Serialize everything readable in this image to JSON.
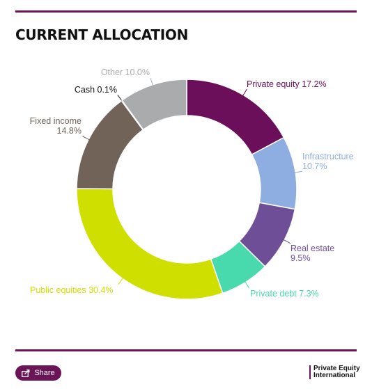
{
  "header": {
    "title": "CURRENT ALLOCATION"
  },
  "footer": {
    "share_label": "Share",
    "brand_line1": "Private Equity",
    "brand_line2": "International"
  },
  "colors": {
    "accent": "#6b1457"
  },
  "chart_data": {
    "type": "pie",
    "variant": "donut",
    "title": "CURRENT ALLOCATION",
    "legend": "none (labels beside slices)",
    "slices": [
      {
        "label": "Private equity",
        "value": 17.2,
        "label_text": "Private equity 17.2%",
        "color": "#6b0f5b"
      },
      {
        "label": "Infrastructure",
        "value": 10.7,
        "label_text": "Infrastructure 10.7%",
        "color": "#8eaee2"
      },
      {
        "label": "Real estate",
        "value": 9.5,
        "label_text": "Real estate 9.5%",
        "color": "#6f4e98"
      },
      {
        "label": "Private debt",
        "value": 7.3,
        "label_text": "Private debt 7.3%",
        "color": "#48d9ad"
      },
      {
        "label": "Public equities",
        "value": 30.4,
        "label_text": "Public equities 30.4%",
        "color": "#cfe000"
      },
      {
        "label": "Fixed income",
        "value": 14.8,
        "label_text": "Fixed income 14.8%",
        "color": "#726359"
      },
      {
        "label": "Cash",
        "value": 0.1,
        "label_text": "Cash 0.1%",
        "color": "#1a1a1a"
      },
      {
        "label": "Other",
        "value": 10.0,
        "label_text": "Other 10.0%",
        "color": "#a9abad"
      }
    ]
  }
}
